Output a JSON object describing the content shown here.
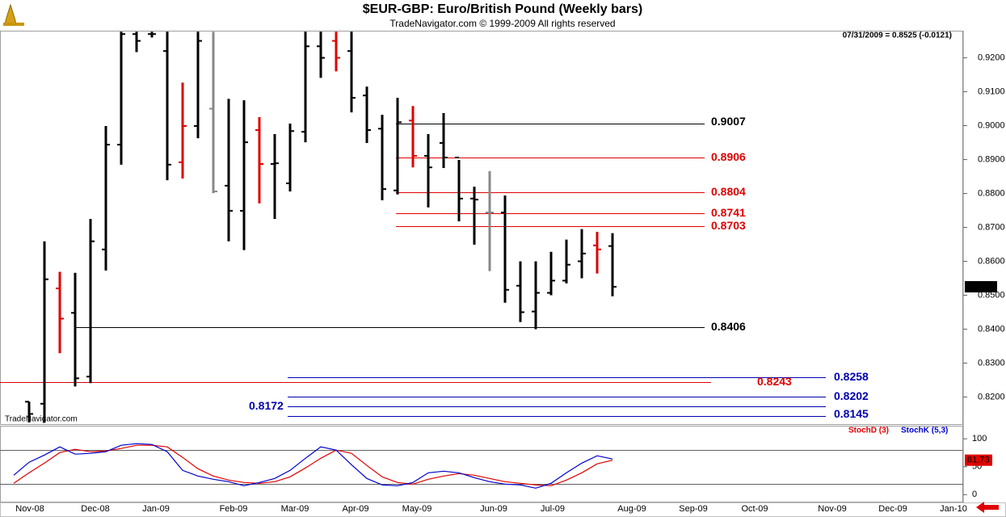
{
  "chart_data": [
    {
      "type": "ohlc",
      "title": "$EUR-GBP:  Euro/British Pound  (Weekly bars)",
      "subtitle": "TradeNavigator.com © 1999-2009 All rights reserved",
      "annotation": "07/31/2009 = 0.8525 (-0.0121)",
      "watermark": "TradeNavigator.com",
      "categories": [
        null,
        null,
        null,
        null,
        null,
        null,
        null,
        null,
        null,
        null,
        null,
        null,
        null,
        null,
        null,
        null,
        null,
        null,
        null,
        null,
        null,
        null,
        null,
        null,
        null,
        null,
        null,
        null,
        null,
        null,
        null,
        null,
        null,
        null,
        null,
        null,
        null,
        null,
        null
      ],
      "open": [
        0.8186,
        0.818,
        0.852,
        0.8448,
        0.826,
        0.8635,
        0.8944,
        0.927,
        0.927,
        0.922,
        0.8892,
        0.8999,
        0.905,
        0.8823,
        0.8749,
        0.8987,
        0.8887,
        0.883,
        0.8982,
        0.9234,
        0.925,
        0.922,
        0.9089,
        0.8991,
        0.8809,
        0.9015,
        0.8911,
        0.8949,
        0.8906,
        0.8785,
        0.8744,
        0.8744,
        0.8528,
        0.8452,
        0.8507,
        0.8543,
        0.86,
        0.8647,
        0.8645
      ],
      "high": [
        0.8186,
        0.8659,
        0.8569,
        0.8566,
        0.8725,
        0.8999,
        0.9277,
        0.9277,
        0.9277,
        0.9277,
        0.9127,
        0.9277,
        0.9277,
        0.9079,
        0.9075,
        0.9025,
        0.8975,
        0.9006,
        0.9277,
        0.9277,
        0.9277,
        0.9277,
        0.9115,
        0.9032,
        0.9082,
        0.9058,
        0.8975,
        0.9037,
        0.8899,
        0.882,
        0.8866,
        0.8794,
        0.86,
        0.86,
        0.8628,
        0.8664,
        0.8695,
        0.8687,
        0.8683
      ],
      "low": [
        0.8125,
        0.8125,
        0.8329,
        0.8231,
        0.8241,
        0.8573,
        0.8885,
        0.9217,
        0.926,
        0.8839,
        0.8844,
        0.8963,
        0.8801,
        0.8659,
        0.8633,
        0.8771,
        0.8725,
        0.8806,
        0.8951,
        0.9141,
        0.916,
        0.9039,
        0.8949,
        0.878,
        0.8797,
        0.8877,
        0.8759,
        0.8875,
        0.8718,
        0.8649,
        0.8571,
        0.8478,
        0.8421,
        0.84,
        0.85,
        0.8535,
        0.855,
        0.8564,
        0.8497
      ],
      "close": [
        0.815,
        0.8547,
        0.8431,
        0.8255,
        0.8659,
        0.8944,
        0.927,
        0.925,
        0.927,
        0.8885,
        0.8999,
        0.925,
        0.8806,
        0.8749,
        0.8951,
        0.8887,
        0.8889,
        0.8984,
        0.9234,
        0.92,
        0.92,
        0.9082,
        0.8987,
        0.8813,
        0.901,
        0.8911,
        0.8877,
        0.8906,
        0.8785,
        0.8782,
        0.8744,
        0.8516,
        0.845,
        0.8507,
        0.8543,
        0.859,
        0.8623,
        0.8635,
        0.8525
      ],
      "colors": [
        "#000000",
        "#000000",
        "#e00000",
        "#000000",
        "#000000",
        "#000000",
        "#000000",
        "#000000",
        "#000000",
        "#000000",
        "#e00000",
        "#000000",
        "#888888",
        "#000000",
        "#000000",
        "#e00000",
        "#000000",
        "#000000",
        "#000000",
        "#000000",
        "#e00000",
        "#000000",
        "#000000",
        "#000000",
        "#000000",
        "#e00000",
        "#000000",
        "#000000",
        "#000000",
        "#000000",
        "#888888",
        "#000000",
        "#000000",
        "#000000",
        "#000000",
        "#000000",
        "#000000",
        "#e00000",
        "#000000"
      ],
      "levels": [
        {
          "value": 0.9007,
          "color": "#000000"
        },
        {
          "value": 0.8906,
          "color": "#e00000"
        },
        {
          "value": 0.8804,
          "color": "#e00000"
        },
        {
          "value": 0.8741,
          "color": "#e00000"
        },
        {
          "value": 0.8703,
          "color": "#e00000"
        },
        {
          "value": 0.8406,
          "color": "#000000"
        },
        {
          "value": 0.8258,
          "color": "#0000b0"
        },
        {
          "value": 0.8243,
          "color": "#e00000"
        },
        {
          "value": 0.8202,
          "color": "#0000b0"
        },
        {
          "value": 0.8172,
          "color": "#0000b0"
        },
        {
          "value": 0.8145,
          "color": "#0000b0"
        }
      ],
      "last_value": 0.8525,
      "ylim": [
        0.812,
        0.928
      ],
      "yticks": [
        {
          "value": 0.82,
          "label": "0.8200"
        },
        {
          "value": 0.83,
          "label": "0.8300"
        },
        {
          "value": 0.84,
          "label": "0.8400"
        },
        {
          "value": 0.85,
          "label": "0.8500"
        },
        {
          "value": 0.86,
          "label": "0.8600"
        },
        {
          "value": 0.87,
          "label": "0.8700"
        },
        {
          "value": 0.88,
          "label": "0.8800"
        },
        {
          "value": 0.89,
          "label": "0.8900"
        },
        {
          "value": 0.9,
          "label": "0.9000"
        },
        {
          "value": 0.91,
          "label": "0.9100"
        },
        {
          "value": 0.92,
          "label": "0.9200"
        }
      ]
    },
    {
      "type": "line",
      "categories": [
        null,
        null,
        null,
        null,
        null,
        null,
        null,
        null,
        null,
        null,
        null,
        null,
        null,
        null,
        null,
        null,
        null,
        null,
        null,
        null,
        null,
        null,
        null,
        null,
        null,
        null,
        null,
        null,
        null,
        null,
        null,
        null,
        null,
        null,
        null,
        null,
        null,
        null,
        null,
        null
      ],
      "series": [
        {
          "name": "StochD (3)",
          "color": "#e00000",
          "values": [
            20.3,
            39.1,
            56.5,
            75.4,
            81.2,
            76.8,
            78.3,
            82.6,
            88.4,
            88.4,
            85.5,
            66.7,
            46.4,
            33.3,
            26.1,
            21.7,
            20.3,
            23.2,
            31.9,
            47.8,
            65.2,
            79.7,
            73.9,
            52.2,
            31.9,
            21.7,
            18.8,
            27.5,
            33.3,
            37.7,
            34.8,
            29,
            23.2,
            20.3,
            17.4,
            15.9,
            26.1,
            39.1,
            55.1,
            61.73
          ]
        },
        {
          "name": "StochK (5,3)",
          "color": "#0000d0",
          "values": [
            34.8,
            58,
            71,
            85.5,
            72.5,
            74,
            76.8,
            88.4,
            91.3,
            89.9,
            76.8,
            43.5,
            33.3,
            27.5,
            23.2,
            15.9,
            21.7,
            29,
            43.5,
            65.2,
            85.5,
            79.7,
            53.6,
            29,
            17.4,
            15.9,
            21.7,
            39.1,
            42,
            39.1,
            30.4,
            23.2,
            18.8,
            17.4,
            11.6,
            20.3,
            39.1,
            56.5,
            69.6,
            63.8
          ]
        }
      ],
      "reference_lines": [
        80,
        20
      ],
      "last_value": 61.73,
      "ylim": [
        -14,
        122
      ],
      "yticks": [
        0,
        50,
        100
      ],
      "x_axis_labels": [
        "Nov-08",
        "Dec-08",
        "Jan-09",
        "Feb-09",
        "Mar-09",
        "Apr-09",
        "May-09",
        "Jun-09",
        "Jul-09",
        "Aug-09",
        "Sep-09",
        "Oct-09",
        "Nov-09",
        "Dec-09",
        "Jan-10"
      ]
    }
  ]
}
